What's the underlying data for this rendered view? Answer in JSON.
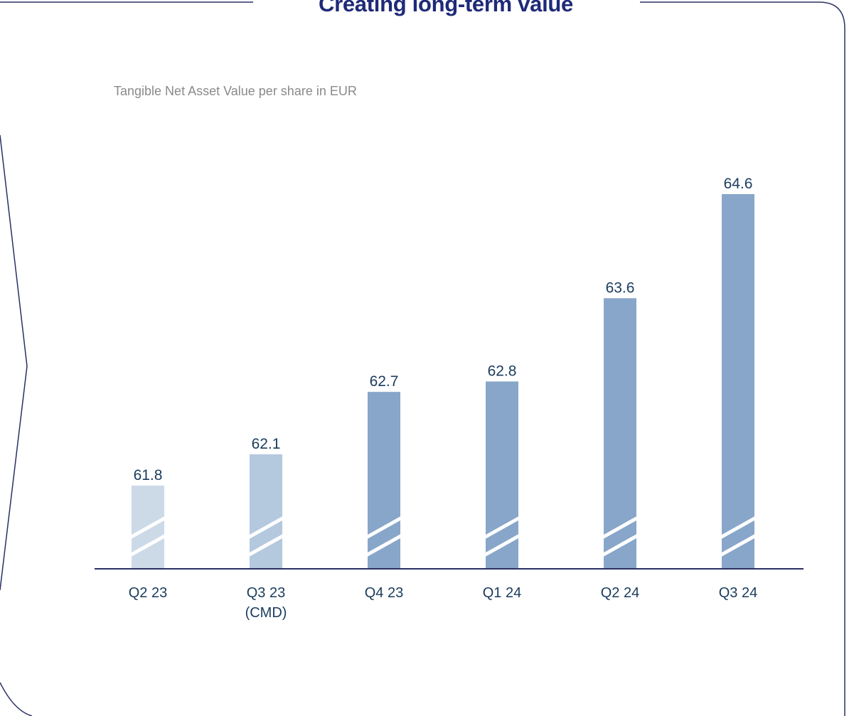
{
  "title": "Creating long-term value",
  "colors": {
    "frame": "#2a3063",
    "title": "#1e2a78",
    "subtitle": "#8a8a8a",
    "value_text": "#1a3b5c",
    "axis": "#2a3063",
    "bar_light": "#ccdae8",
    "bar_medium": "#b4c8de",
    "bar_dark": "#87a6c9",
    "break_mark": "#ffffff"
  },
  "chart_data": {
    "type": "bar",
    "title": "",
    "ylabel": "Tangible Net Asset Value per share in EUR",
    "xlabel": "",
    "axis_break": true,
    "ylim": [
      61.0,
      64.6
    ],
    "grid": false,
    "categories": [
      [
        "Q2 23"
      ],
      [
        "Q3 23",
        "(CMD)"
      ],
      [
        "Q4 23"
      ],
      [
        "Q1 24"
      ],
      [
        "Q2 24"
      ],
      [
        "Q3 24"
      ]
    ],
    "values": [
      61.8,
      62.1,
      62.7,
      62.8,
      63.6,
      64.6
    ],
    "value_labels": [
      "61.8",
      "62.1",
      "62.7",
      "62.8",
      "63.6",
      "64.6"
    ],
    "bar_color_keys": [
      "bar_light",
      "bar_medium",
      "bar_dark",
      "bar_dark",
      "bar_dark",
      "bar_dark"
    ]
  }
}
